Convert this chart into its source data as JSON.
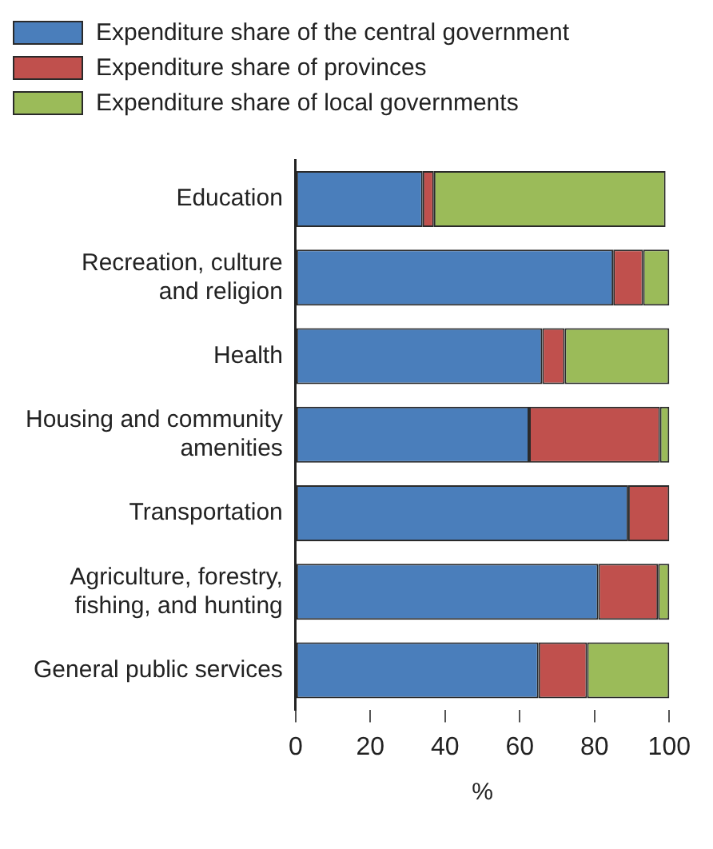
{
  "chart_data": {
    "type": "bar",
    "orientation": "horizontal",
    "stacked": true,
    "xlabel": "%",
    "categories": [
      "Education",
      "Recreation, culture and religion",
      "Health",
      "Housing and community amenities",
      "Transportation",
      "Agriculture, forestry, fishing, and hunting",
      "General public services"
    ],
    "series": [
      {
        "name": "Expenditure share of the central government",
        "color": "#4a7ebb",
        "values": [
          34,
          85,
          66,
          62.5,
          89,
          81,
          65
        ]
      },
      {
        "name": "Expenditure share of provinces",
        "color": "#c0504d",
        "values": [
          3,
          8,
          6,
          35,
          11,
          16,
          13
        ]
      },
      {
        "name": "Expenditure share of local governments",
        "color": "#9bbb59",
        "values": [
          62,
          7,
          28,
          2.5,
          0,
          3,
          22
        ]
      }
    ],
    "xlim": [
      0,
      100
    ],
    "xticks": [
      0,
      20,
      40,
      60,
      80,
      100
    ],
    "grid": false,
    "legend": "top left"
  }
}
